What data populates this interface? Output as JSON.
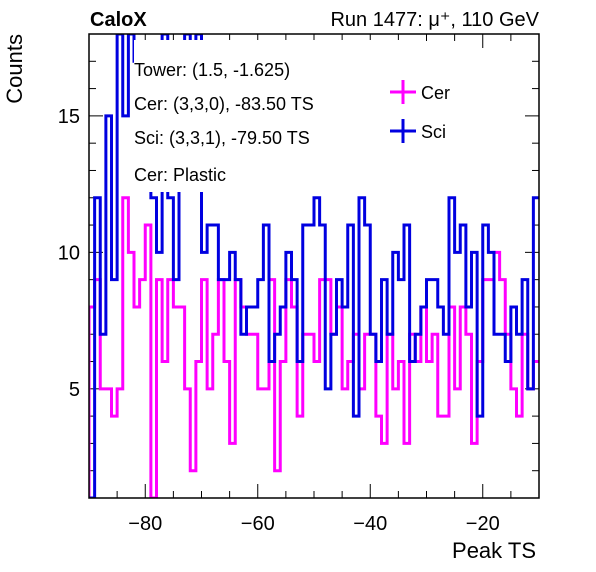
{
  "header": {
    "title": "CaloX",
    "run_info": "Run 1477:   μ⁺, 110 GeV"
  },
  "annotations": [
    "Tower: (1.5, -1.625)",
    "Cer: (3,3,0), -83.50 TS",
    "Sci: (3,3,1), -79.50 TS",
    "Cer: Plastic"
  ],
  "colors": {
    "cer": "#ff00ff",
    "sci": "#0000e0",
    "axis": "#000000"
  },
  "chart_data": {
    "type": "histogram",
    "xlabel": "Peak TS",
    "ylabel": "Counts",
    "xlim": [
      -90,
      -10
    ],
    "ylim": [
      1,
      18
    ],
    "bin_width": 1,
    "x_ticks": [
      -80,
      -60,
      -40,
      -20
    ],
    "x_tick_labels": [
      "−80",
      "−60",
      "−40",
      "−20"
    ],
    "y_ticks": [
      5,
      10,
      15
    ],
    "y_tick_labels": [
      "5",
      "10",
      "15"
    ],
    "legend_position": "top-right",
    "series": [
      {
        "name": "Cer",
        "color": "#ff00ff",
        "bin_low_edges": [
          -90,
          -89,
          -88,
          -87,
          -86,
          -85,
          -84,
          -83,
          -82,
          -81,
          -80,
          -79,
          -78,
          -77,
          -76,
          -75,
          -74,
          -73,
          -72,
          -71,
          -70,
          -69,
          -68,
          -67,
          -66,
          -65,
          -64,
          -63,
          -62,
          -61,
          -60,
          -59,
          -58,
          -57,
          -56,
          -55,
          -54,
          -53,
          -52,
          -51,
          -50,
          -49,
          -48,
          -47,
          -46,
          -45,
          -44,
          -43,
          -42,
          -41,
          -40,
          -39,
          -38,
          -37,
          -36,
          -35,
          -34,
          -33,
          -32,
          -31,
          -30,
          -29,
          -28,
          -27,
          -26,
          -25,
          -24,
          -23,
          -22,
          -21,
          -20,
          -19,
          -18,
          -17,
          -16,
          -15,
          -14,
          -13,
          -12,
          -11
        ],
        "values": [
          8,
          9,
          5,
          5,
          4,
          5,
          12,
          10,
          8,
          9,
          11,
          1,
          9,
          6,
          9,
          8,
          8,
          5,
          2,
          6,
          9,
          5,
          7,
          9,
          6,
          3,
          9,
          8,
          7,
          7,
          5,
          5,
          9,
          2,
          6,
          9,
          8,
          4,
          7,
          7,
          6,
          9,
          9,
          7,
          8,
          5,
          6,
          7,
          5,
          7,
          7,
          4,
          3,
          7,
          5,
          6,
          3,
          7,
          6,
          8,
          6,
          7,
          4,
          4,
          8,
          5,
          8,
          7,
          3,
          6,
          9,
          9,
          10,
          9,
          7,
          5,
          4,
          7,
          5,
          6
        ]
      },
      {
        "name": "Sci",
        "color": "#0000e0",
        "bin_low_edges": [
          -90,
          -89,
          -88,
          -87,
          -86,
          -85,
          -84,
          -83,
          -82,
          -81,
          -80,
          -79,
          -78,
          -77,
          -76,
          -75,
          -74,
          -73,
          -72,
          -71,
          -70,
          -69,
          -68,
          -67,
          -66,
          -65,
          -64,
          -63,
          -62,
          -61,
          -60,
          -59,
          -58,
          -57,
          -56,
          -55,
          -54,
          -53,
          -52,
          -51,
          -50,
          -49,
          -48,
          -47,
          -46,
          -45,
          -44,
          -43,
          -42,
          -41,
          -40,
          -39,
          -38,
          -37,
          -36,
          -35,
          -34,
          -33,
          -32,
          -31,
          -30,
          -29,
          -28,
          -27,
          -26,
          -25,
          -24,
          -23,
          -22,
          -21,
          -20,
          -19,
          -18,
          -17,
          -16,
          -15,
          -14,
          -13,
          -12,
          -11
        ],
        "values": [
          1,
          12,
          7,
          15,
          9,
          18,
          15,
          18,
          17,
          14,
          15,
          12,
          10,
          18,
          12,
          9,
          15,
          18,
          16,
          18,
          10,
          11,
          11,
          9,
          9,
          10,
          9,
          7,
          8,
          8,
          9,
          11,
          6,
          7,
          8,
          10,
          9,
          6,
          11,
          11,
          12,
          11,
          5,
          7,
          9,
          8,
          11,
          4,
          12,
          11,
          7,
          6,
          9,
          7,
          10,
          9,
          11,
          6,
          7,
          8,
          9,
          9,
          8,
          7,
          12,
          10,
          11,
          8,
          10,
          4,
          11,
          10,
          7,
          7,
          6,
          8,
          7,
          9,
          5,
          12
        ]
      }
    ]
  }
}
